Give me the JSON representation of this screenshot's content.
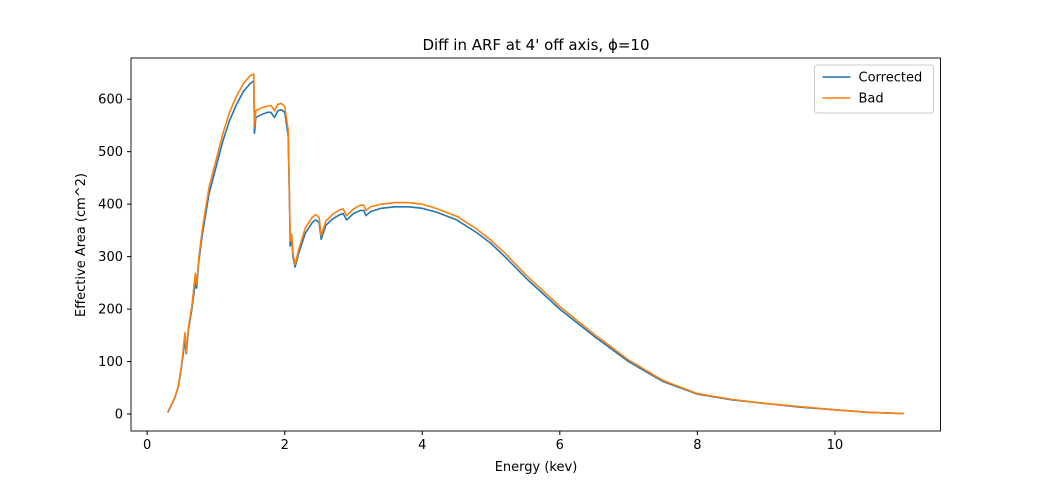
{
  "chart_data": {
    "type": "line",
    "title": "Diff in ARF at 4' off axis, ϕ=10",
    "x_label": "Energy (kev)",
    "y_label": "Effective Area (cm^2)",
    "x": [
      0.3,
      0.4,
      0.45,
      0.5,
      0.55,
      0.57,
      0.6,
      0.65,
      0.7,
      0.72,
      0.75,
      0.8,
      0.9,
      1.0,
      1.1,
      1.2,
      1.3,
      1.4,
      1.5,
      1.55,
      1.56,
      1.58,
      1.65,
      1.75,
      1.8,
      1.85,
      1.9,
      1.95,
      2.0,
      2.05,
      2.07,
      2.08,
      2.1,
      2.12,
      2.15,
      2.2,
      2.3,
      2.4,
      2.45,
      2.5,
      2.53,
      2.6,
      2.7,
      2.8,
      2.85,
      2.9,
      3.0,
      3.1,
      3.15,
      3.18,
      3.25,
      3.4,
      3.6,
      3.8,
      4.0,
      4.2,
      4.5,
      4.8,
      5.0,
      5.2,
      5.5,
      6.0,
      6.5,
      7.0,
      7.5,
      8.0,
      8.5,
      9.0,
      9.5,
      10.0,
      10.5,
      11.0
    ],
    "series": [
      {
        "name": "Corrected",
        "color": "#1f77b4",
        "values": [
          3,
          30,
          50,
          90,
          140,
          115,
          160,
          200,
          250,
          240,
          290,
          340,
          420,
          470,
          520,
          560,
          590,
          615,
          630,
          635,
          535,
          565,
          570,
          575,
          575,
          565,
          578,
          580,
          575,
          530,
          400,
          320,
          335,
          300,
          280,
          305,
          345,
          365,
          370,
          365,
          333,
          360,
          372,
          380,
          382,
          370,
          382,
          388,
          388,
          378,
          386,
          392,
          395,
          395,
          392,
          385,
          370,
          345,
          325,
          300,
          260,
          200,
          148,
          100,
          62,
          38,
          27,
          20,
          13,
          8,
          3,
          1
        ]
      },
      {
        "name": "Bad",
        "color": "#ff7f0e",
        "values": [
          4,
          31,
          52,
          93,
          155,
          118,
          165,
          206,
          268,
          247,
          298,
          350,
          432,
          483,
          534,
          576,
          606,
          630,
          645,
          648,
          548,
          578,
          583,
          587,
          588,
          578,
          590,
          592,
          586,
          542,
          410,
          330,
          343,
          307,
          285,
          312,
          355,
          375,
          380,
          375,
          340,
          368,
          381,
          389,
          391,
          378,
          391,
          398,
          398,
          388,
          395,
          400,
          403,
          403,
          400,
          392,
          377,
          352,
          331,
          307,
          266,
          205,
          152,
          103,
          64,
          39,
          28,
          20,
          14,
          8,
          3,
          1
        ]
      }
    ],
    "xlim": [
      -0.235,
      11.535
    ],
    "ylim": [
      -32.3,
      678.5
    ],
    "xticks": [
      0,
      2,
      4,
      6,
      8,
      10
    ],
    "yticks": [
      0,
      100,
      200,
      300,
      400,
      500,
      600
    ],
    "legend": "upper right"
  }
}
